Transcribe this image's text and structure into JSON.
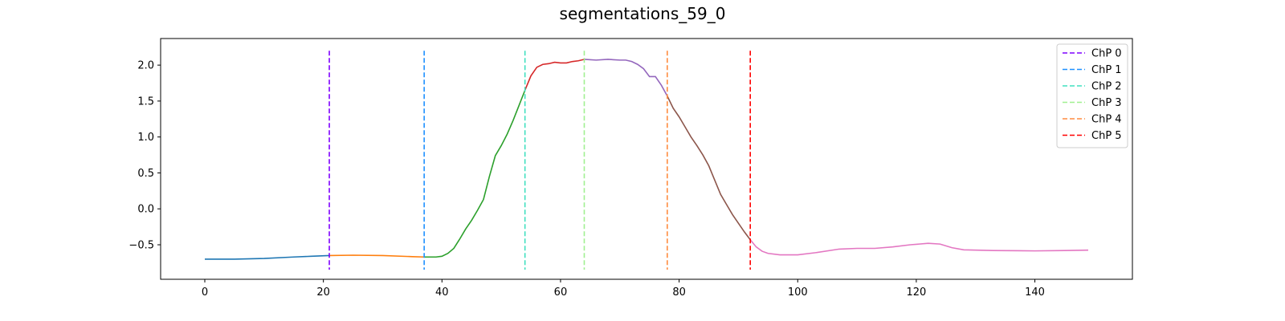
{
  "chart_data": {
    "type": "line",
    "title": "segmentations_59_0",
    "xlabel": "",
    "ylabel": "",
    "xlim": [
      -7.45,
      156.45
    ],
    "ylim": [
      -0.98,
      2.37
    ],
    "xticks": [
      0,
      20,
      40,
      60,
      80,
      100,
      120,
      140
    ],
    "yticks": [
      -0.5,
      0.0,
      0.5,
      1.0,
      1.5,
      2.0
    ],
    "grid": false,
    "legend_position": "top-right",
    "segments": [
      {
        "color": "#1f77b4",
        "points": [
          [
            0,
            -0.7
          ],
          [
            5,
            -0.7
          ],
          [
            10,
            -0.69
          ],
          [
            15,
            -0.67
          ],
          [
            18,
            -0.66
          ],
          [
            21,
            -0.65
          ]
        ]
      },
      {
        "color": "#ff7f0e",
        "points": [
          [
            21,
            -0.65
          ],
          [
            25,
            -0.645
          ],
          [
            30,
            -0.65
          ],
          [
            35,
            -0.665
          ],
          [
            37,
            -0.67
          ]
        ]
      },
      {
        "color": "#2ca02c",
        "points": [
          [
            37,
            -0.67
          ],
          [
            39,
            -0.67
          ],
          [
            40,
            -0.66
          ],
          [
            41,
            -0.62
          ],
          [
            42,
            -0.55
          ],
          [
            43,
            -0.42
          ],
          [
            44,
            -0.28
          ],
          [
            45,
            -0.16
          ],
          [
            46,
            -0.02
          ],
          [
            47,
            0.13
          ],
          [
            48,
            0.45
          ],
          [
            49,
            0.74
          ],
          [
            50,
            0.88
          ],
          [
            51,
            1.04
          ],
          [
            52,
            1.23
          ],
          [
            53,
            1.44
          ],
          [
            54,
            1.65
          ]
        ]
      },
      {
        "color": "#d62728",
        "points": [
          [
            54,
            1.65
          ],
          [
            55,
            1.85
          ],
          [
            56,
            1.97
          ],
          [
            57,
            2.01
          ],
          [
            58,
            2.02
          ],
          [
            59,
            2.04
          ],
          [
            60,
            2.03
          ],
          [
            61,
            2.03
          ],
          [
            62,
            2.05
          ],
          [
            63,
            2.06
          ],
          [
            64,
            2.08
          ]
        ]
      },
      {
        "color": "#9467bd",
        "points": [
          [
            64,
            2.08
          ],
          [
            66,
            2.07
          ],
          [
            68,
            2.08
          ],
          [
            70,
            2.07
          ],
          [
            71,
            2.07
          ],
          [
            72,
            2.05
          ],
          [
            73,
            2.01
          ],
          [
            74,
            1.95
          ],
          [
            75,
            1.84
          ],
          [
            76,
            1.84
          ],
          [
            77,
            1.72
          ],
          [
            78,
            1.57
          ]
        ]
      },
      {
        "color": "#8c564b",
        "points": [
          [
            78,
            1.57
          ],
          [
            79,
            1.4
          ],
          [
            80,
            1.28
          ],
          [
            81,
            1.14
          ],
          [
            82,
            1.0
          ],
          [
            83,
            0.88
          ],
          [
            84,
            0.75
          ],
          [
            85,
            0.6
          ],
          [
            86,
            0.4
          ],
          [
            87,
            0.2
          ],
          [
            88,
            0.06
          ],
          [
            89,
            -0.08
          ],
          [
            90,
            -0.2
          ],
          [
            91,
            -0.32
          ],
          [
            92,
            -0.43
          ]
        ]
      },
      {
        "color": "#e377c2",
        "points": [
          [
            92,
            -0.43
          ],
          [
            93,
            -0.53
          ],
          [
            94,
            -0.59
          ],
          [
            95,
            -0.62
          ],
          [
            97,
            -0.64
          ],
          [
            100,
            -0.64
          ],
          [
            103,
            -0.61
          ],
          [
            107,
            -0.56
          ],
          [
            110,
            -0.55
          ],
          [
            113,
            -0.55
          ],
          [
            116,
            -0.53
          ],
          [
            119,
            -0.5
          ],
          [
            122,
            -0.48
          ],
          [
            124,
            -0.49
          ],
          [
            126,
            -0.54
          ],
          [
            128,
            -0.57
          ],
          [
            133,
            -0.58
          ],
          [
            140,
            -0.585
          ],
          [
            145,
            -0.58
          ],
          [
            149,
            -0.575
          ]
        ]
      }
    ],
    "changepoints": [
      {
        "name": "ChP 0",
        "x": 21,
        "color": "#7f00ff"
      },
      {
        "name": "ChP 1",
        "x": 37,
        "color": "#1e90ff"
      },
      {
        "name": "ChP 2",
        "x": 54,
        "color": "#40e0c0"
      },
      {
        "name": "ChP 3",
        "x": 64,
        "color": "#a0f090"
      },
      {
        "name": "ChP 4",
        "x": 78,
        "color": "#ff8c40"
      },
      {
        "name": "ChP 5",
        "x": 92,
        "color": "#ff0000"
      }
    ],
    "changepoint_ymax": 2.2
  }
}
